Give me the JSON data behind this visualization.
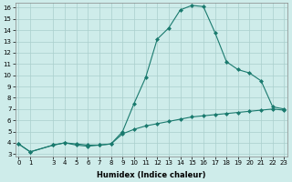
{
  "x": [
    0,
    1,
    3,
    4,
    5,
    6,
    7,
    8,
    9,
    10,
    11,
    12,
    13,
    14,
    15,
    16,
    17,
    18,
    19,
    20,
    21,
    22,
    23
  ],
  "y_main": [
    3.9,
    3.2,
    3.8,
    4.0,
    3.8,
    3.7,
    3.8,
    3.9,
    5.0,
    7.5,
    9.8,
    13.2,
    14.2,
    15.8,
    16.2,
    16.1,
    13.8,
    11.2,
    10.5,
    10.2,
    9.5,
    7.2,
    7.0
  ],
  "y_secondary": [
    3.9,
    3.2,
    3.8,
    4.0,
    3.9,
    3.8,
    3.8,
    3.9,
    4.8,
    5.2,
    5.5,
    5.7,
    5.9,
    6.1,
    6.3,
    6.4,
    6.5,
    6.6,
    6.7,
    6.8,
    6.9,
    7.0,
    6.9
  ],
  "line_color": "#1a7a6e",
  "bg_color": "#ceecea",
  "xlabel": "Humidex (Indice chaleur)",
  "ylim_min": 2.8,
  "ylim_max": 16.4,
  "xlim_min": -0.3,
  "xlim_max": 23.3,
  "yticks": [
    3,
    4,
    5,
    6,
    7,
    8,
    9,
    10,
    11,
    12,
    13,
    14,
    15,
    16
  ],
  "xticks": [
    0,
    1,
    3,
    4,
    5,
    6,
    7,
    8,
    9,
    10,
    11,
    12,
    13,
    14,
    15,
    16,
    17,
    18,
    19,
    20,
    21,
    22,
    23
  ],
  "grid_color": "#aacfcc",
  "marker": "D",
  "markersize": 2.0,
  "linewidth": 0.8,
  "tick_fontsize": 5.0,
  "xlabel_fontsize": 6.0
}
